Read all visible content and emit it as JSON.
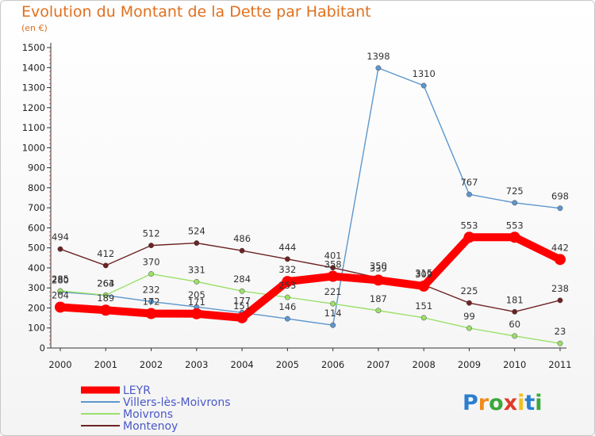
{
  "chart_data": {
    "type": "line",
    "title": "Evolution du Montant de la Dette par Habitant",
    "subtitle": "(en €)",
    "xlabel": "",
    "ylabel": "",
    "ylim": [
      0,
      1500
    ],
    "yticks": [
      0,
      100,
      200,
      300,
      400,
      500,
      600,
      700,
      800,
      900,
      1000,
      1100,
      1200,
      1300,
      1400,
      1500
    ],
    "grid": false,
    "legend_position": "bottom-left",
    "x": [
      "2000",
      "2001",
      "2002",
      "2003",
      "2004",
      "2005",
      "2006",
      "2007",
      "2008",
      "2009",
      "2010",
      "2011"
    ],
    "series": [
      {
        "name": "Villers-lès-Moivrons",
        "color": "#5d97cd",
        "thick": false,
        "values": [
          280,
          263,
          232,
          205,
          177,
          146,
          114,
          1398,
          1310,
          767,
          725,
          698
        ]
      },
      {
        "name": "Moivrons",
        "color": "#9be06a",
        "thick": false,
        "values": [
          285,
          264,
          370,
          331,
          284,
          253,
          221,
          187,
          151,
          99,
          60,
          23
        ]
      },
      {
        "name": "Montenoy",
        "color": "#6e2323",
        "thick": false,
        "values": [
          494,
          412,
          512,
          524,
          486,
          444,
          401,
          350,
          315,
          225,
          181,
          238
        ]
      },
      {
        "name": "LEYR",
        "color": "#ff0000",
        "thick": true,
        "values": [
          204,
          189,
          172,
          171,
          151,
          332,
          358,
          339,
          309,
          553,
          553,
          442
        ]
      }
    ],
    "legend_order": [
      "LEYR",
      "Villers-lès-Moivrons",
      "Moivrons",
      "Montenoy"
    ]
  },
  "logo": {
    "letters": [
      "P",
      "r",
      "o",
      "x",
      "i",
      "t",
      "i"
    ],
    "colors": [
      "#2a7fd0",
      "#f08a1c",
      "#3aa83a",
      "#e03a2a",
      "#f0c020",
      "#2a7fd0",
      "#3aa83a"
    ]
  }
}
